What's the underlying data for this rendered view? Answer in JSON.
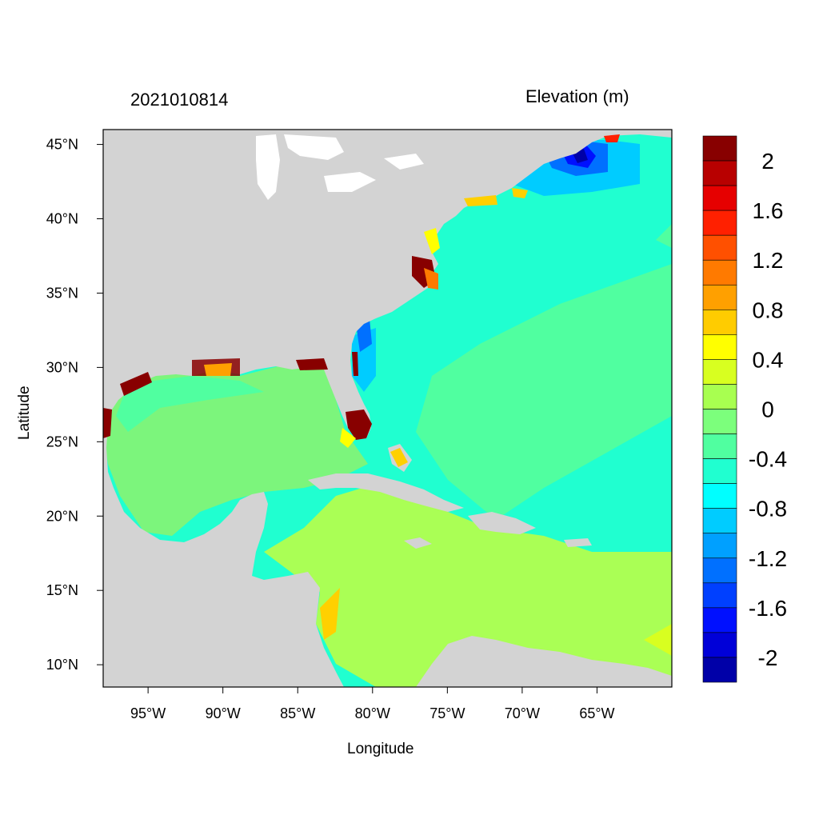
{
  "header": {
    "timestamp": "2021010814",
    "variable": "Elevation (m)"
  },
  "axes": {
    "xlabel": "Longitude",
    "ylabel": "Latitude",
    "lon_range": [
      -98,
      -60
    ],
    "lat_range": [
      8.5,
      46
    ],
    "x_ticks": [
      {
        "value": -95,
        "label": "95°W"
      },
      {
        "value": -90,
        "label": "90°W"
      },
      {
        "value": -85,
        "label": "85°W"
      },
      {
        "value": -80,
        "label": "80°W"
      },
      {
        "value": -75,
        "label": "75°W"
      },
      {
        "value": -70,
        "label": "70°W"
      },
      {
        "value": -65,
        "label": "65°W"
      }
    ],
    "y_ticks": [
      {
        "value": 45,
        "label": "45°N"
      },
      {
        "value": 40,
        "label": "40°N"
      },
      {
        "value": 35,
        "label": "35°N"
      },
      {
        "value": 30,
        "label": "30°N"
      },
      {
        "value": 25,
        "label": "25°N"
      },
      {
        "value": 20,
        "label": "20°N"
      },
      {
        "value": 15,
        "label": "15°N"
      },
      {
        "value": 10,
        "label": "10°N"
      }
    ]
  },
  "colorbar": {
    "colors_top_to_bottom": [
      "#880000",
      "#b80000",
      "#e60000",
      "#ff2000",
      "#ff5000",
      "#ff7a00",
      "#ffa000",
      "#ffcc00",
      "#ffff00",
      "#d8ff20",
      "#a8ff50",
      "#7cff7c",
      "#50ffa0",
      "#20ffd0",
      "#00ffff",
      "#00ccff",
      "#00a0ff",
      "#0070ff",
      "#0040ff",
      "#0010ff",
      "#0000d8",
      "#0000a8"
    ],
    "labels": [
      "2",
      "1.6",
      "1.2",
      "0.8",
      "0.4",
      "0",
      "-0.4",
      "-0.8",
      "-1.2",
      "-1.6",
      "-2"
    ]
  },
  "colors": {
    "land": "#d3d3d3",
    "gulf_water": "#7cf57c",
    "caribbean_water": "#aaff55",
    "atlantic_water": "#20ffd0",
    "atlantic_shelf": "#50ffa0",
    "coast_surge": "#880000"
  }
}
